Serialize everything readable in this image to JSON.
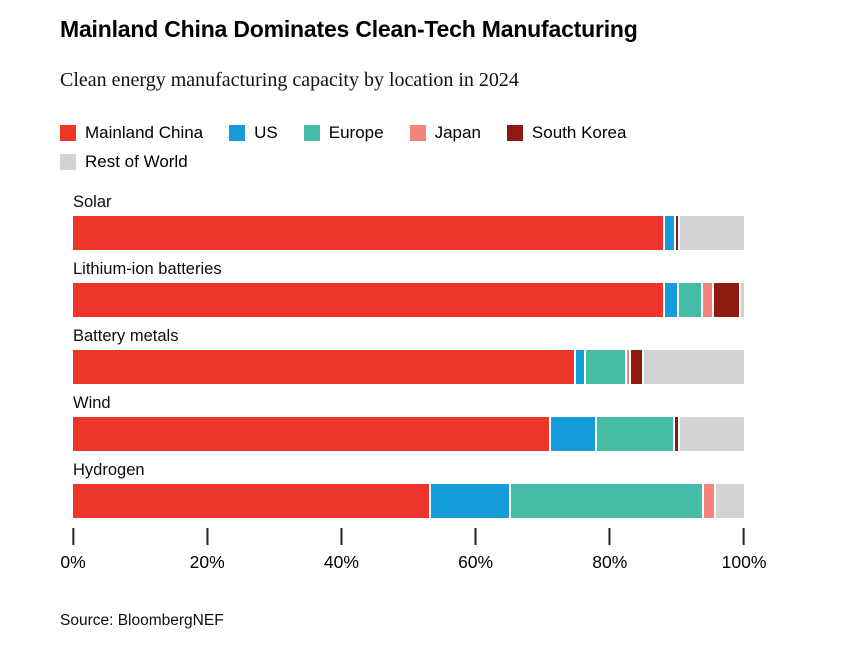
{
  "header": {
    "title": "Mainland China Dominates Clean-Tech Manufacturing",
    "subtitle": "Clean energy manufacturing capacity by location in 2024"
  },
  "legend": [
    {
      "label": "Mainland China",
      "color": "#ee352a"
    },
    {
      "label": "US",
      "color": "#149dd9"
    },
    {
      "label": "Europe",
      "color": "#46bda6"
    },
    {
      "label": "Japan",
      "color": "#f4857c"
    },
    {
      "label": "South Korea",
      "color": "#8e190e"
    },
    {
      "label": "Rest of World",
      "color": "#d3d3d3"
    }
  ],
  "chart_data": {
    "type": "bar",
    "stacked": true,
    "orientation": "horizontal",
    "unit": "percent",
    "title": "Mainland China Dominates Clean-Tech Manufacturing",
    "subtitle": "Clean energy manufacturing capacity by location in 2024",
    "categories": [
      "Solar",
      "Lithium-ion batteries",
      "Battery metals",
      "Wind",
      "Hydrogen"
    ],
    "series": [
      {
        "name": "Mainland China",
        "color": "#ee352a",
        "values": [
          88.2,
          88.2,
          74.9,
          71.2,
          53.4
        ]
      },
      {
        "name": "US",
        "color": "#149dd9",
        "values": [
          1.6,
          2.1,
          1.6,
          6.9,
          11.9
        ]
      },
      {
        "name": "Europe",
        "color": "#46bda6",
        "values": [
          0,
          3.6,
          6.0,
          11.6,
          28.8
        ]
      },
      {
        "name": "Japan",
        "color": "#f4857c",
        "values": [
          0,
          1.6,
          0.6,
          0,
          1.7
        ]
      },
      {
        "name": "South Korea",
        "color": "#8e190e",
        "values": [
          0.6,
          4.0,
          2.0,
          0.7,
          0
        ]
      },
      {
        "name": "Rest of World",
        "color": "#d3d3d3",
        "values": [
          9.6,
          0.5,
          14.9,
          9.6,
          4.2
        ]
      }
    ],
    "x_axis": {
      "range": [
        0,
        100
      ],
      "tick_labels": [
        "0%",
        "20%",
        "40%",
        "60%",
        "80%",
        "100%"
      ],
      "tick_values": [
        0,
        20,
        40,
        60,
        80,
        100
      ],
      "grid": false
    },
    "legend_position": "top"
  },
  "source": "Source: BloombergNEF"
}
